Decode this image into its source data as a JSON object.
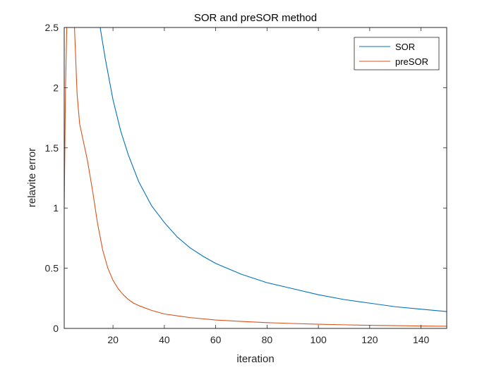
{
  "chart_data": {
    "type": "line",
    "title": "SOR and preSOR method",
    "xlabel": "iteration",
    "ylabel": "relavite error",
    "xlim": [
      1,
      150
    ],
    "ylim": [
      0,
      2.5
    ],
    "xticks": [
      20,
      40,
      60,
      80,
      100,
      120,
      140
    ],
    "yticks": [
      0,
      0.5,
      1,
      1.5,
      2,
      2.5
    ],
    "xtick_labels": [
      "20",
      "40",
      "60",
      "80",
      "100",
      "120",
      "140"
    ],
    "ytick_labels": [
      "0",
      "0.5",
      "1",
      "1.5",
      "2",
      "2.5"
    ],
    "grid": false,
    "legend_position": "top-right",
    "series": [
      {
        "name": "SOR",
        "color": "#0072BD",
        "x": [
          15,
          17,
          20,
          23,
          26,
          30,
          35,
          40,
          45,
          50,
          55,
          60,
          70,
          80,
          90,
          100,
          110,
          120,
          130,
          140,
          150
        ],
        "y": [
          2.5,
          2.24,
          1.9,
          1.64,
          1.44,
          1.22,
          1.02,
          0.88,
          0.76,
          0.67,
          0.6,
          0.54,
          0.45,
          0.38,
          0.33,
          0.28,
          0.24,
          0.21,
          0.18,
          0.16,
          0.14
        ]
      },
      {
        "name": "preSOR",
        "color": "#D95319",
        "x": [
          1,
          1.5,
          2,
          2.5,
          3,
          4,
          5,
          6,
          7,
          8,
          10,
          12,
          14,
          16,
          18,
          20,
          22,
          24,
          26,
          28,
          30,
          35,
          40,
          45,
          50,
          60,
          70,
          80,
          90,
          100,
          110,
          120,
          130,
          140,
          150
        ],
        "y": [
          1.0,
          2.0,
          2.5,
          2.5,
          2.5,
          2.5,
          2.5,
          1.95,
          1.7,
          1.6,
          1.4,
          1.15,
          0.87,
          0.65,
          0.5,
          0.4,
          0.33,
          0.28,
          0.24,
          0.21,
          0.19,
          0.15,
          0.12,
          0.105,
          0.09,
          0.07,
          0.058,
          0.048,
          0.041,
          0.035,
          0.03,
          0.026,
          0.023,
          0.02,
          0.018
        ]
      }
    ]
  }
}
